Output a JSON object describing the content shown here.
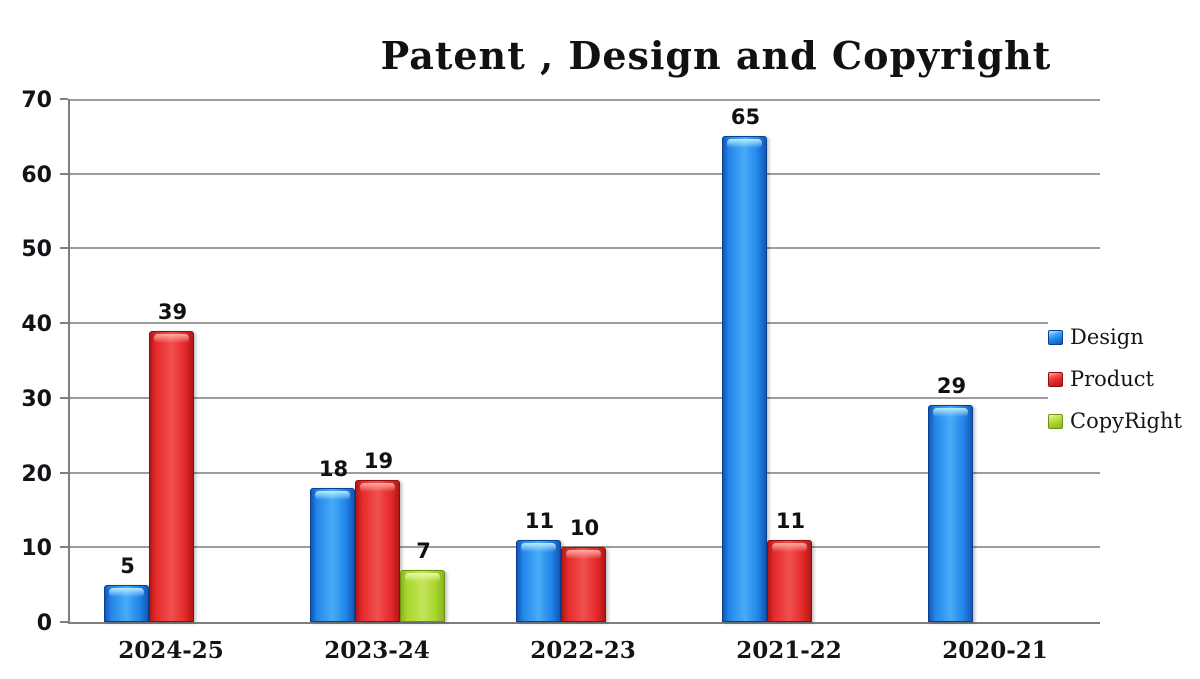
{
  "chart_data": {
    "type": "bar",
    "title": "Patent , Design and Copyright",
    "categories": [
      "2024-25",
      "2023-24",
      "2022-23",
      "2021-22",
      "2020-21"
    ],
    "series": [
      {
        "name": "Design",
        "values": [
          5,
          18,
          11,
          65,
          29
        ],
        "colors": {
          "dark": "#0c3f8f",
          "edge": "#1257b5",
          "body": "#2286ea",
          "center": "#47acf7",
          "shine": "#c2efff"
        }
      },
      {
        "name": "Product",
        "values": [
          39,
          19,
          10,
          11,
          null
        ],
        "colors": {
          "dark": "#8e0e0e",
          "edge": "#b01818",
          "body": "#e62a2a",
          "center": "#f05050",
          "shine": "#ffb3a7"
        }
      },
      {
        "name": "CopyRight",
        "values": [
          null,
          7,
          null,
          null,
          null
        ],
        "colors": {
          "dark": "#6c930e",
          "edge": "#8ab520",
          "body": "#a8d62e",
          "center": "#c3e558",
          "shine": "#eef9b0"
        }
      }
    ],
    "ylim": [
      0,
      70
    ],
    "yticks": [
      0,
      10,
      20,
      30,
      40,
      50,
      60,
      70
    ],
    "xlabel": "",
    "ylabel": "",
    "grid": true,
    "legend_position": "right",
    "gridline_color": "#9c9c9c",
    "axis_color": "#7f7f7f"
  }
}
